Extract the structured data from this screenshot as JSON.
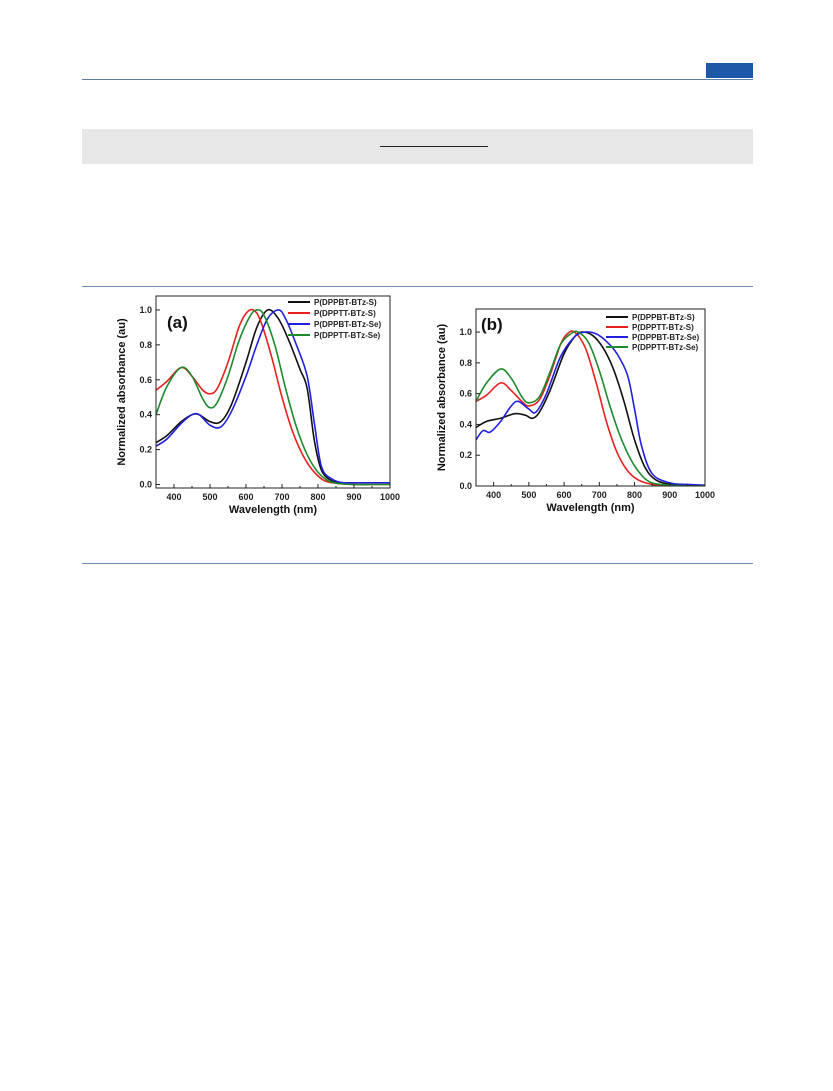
{
  "chart_data": [
    {
      "type": "line",
      "panel_label": "(a)",
      "xlabel": "Wavelength (nm)",
      "ylabel": "Normalized absorbance (au)",
      "xlim": [
        350,
        1000
      ],
      "ylim": [
        -0.02,
        1.08
      ],
      "xticks": [
        400,
        500,
        600,
        700,
        800,
        900,
        1000
      ],
      "yticks": [
        0.0,
        0.2,
        0.4,
        0.6,
        0.8,
        1.0
      ],
      "legend_position": "top-right",
      "series": [
        {
          "name": "P(DPPBT-BTz-S)",
          "color": "#111111",
          "x": [
            350,
            380,
            420,
            450,
            470,
            500,
            530,
            560,
            600,
            630,
            660,
            690,
            720,
            750,
            770,
            790,
            810,
            840,
            870,
            900,
            950,
            1000
          ],
          "y": [
            0.24,
            0.28,
            0.36,
            0.4,
            0.4,
            0.36,
            0.36,
            0.46,
            0.7,
            0.9,
            1.0,
            0.95,
            0.82,
            0.66,
            0.55,
            0.25,
            0.08,
            0.02,
            0.01,
            0.01,
            0.01,
            0.01
          ]
        },
        {
          "name": "P(DPPTT-BTz-S)",
          "color": "#e8201f",
          "x": [
            350,
            380,
            420,
            450,
            480,
            500,
            520,
            550,
            580,
            600,
            620,
            640,
            670,
            700,
            730,
            760,
            790,
            820,
            860,
            900,
            950,
            1000
          ],
          "y": [
            0.54,
            0.59,
            0.67,
            0.62,
            0.54,
            0.52,
            0.55,
            0.7,
            0.9,
            0.98,
            1.0,
            0.94,
            0.74,
            0.5,
            0.3,
            0.16,
            0.07,
            0.02,
            0.005,
            0.0,
            0.0,
            0.0
          ]
        },
        {
          "name": "P(DPPBT-BTz-Se)",
          "color": "#2020e0",
          "x": [
            350,
            380,
            420,
            450,
            470,
            500,
            530,
            560,
            600,
            630,
            660,
            690,
            710,
            740,
            770,
            790,
            810,
            840,
            870,
            900,
            950,
            1000
          ],
          "y": [
            0.22,
            0.26,
            0.35,
            0.4,
            0.4,
            0.34,
            0.33,
            0.42,
            0.62,
            0.8,
            0.95,
            1.0,
            0.95,
            0.8,
            0.62,
            0.35,
            0.1,
            0.03,
            0.01,
            0.01,
            0.01,
            0.01
          ]
        },
        {
          "name": "P(DPPTT-BTz-Se)",
          "color": "#1e8a2e",
          "x": [
            350,
            380,
            420,
            450,
            480,
            500,
            520,
            550,
            580,
            610,
            630,
            650,
            680,
            710,
            740,
            770,
            800,
            830,
            860,
            900,
            950,
            1000
          ],
          "y": [
            0.4,
            0.56,
            0.67,
            0.62,
            0.49,
            0.44,
            0.47,
            0.62,
            0.82,
            0.96,
            1.0,
            0.97,
            0.8,
            0.55,
            0.33,
            0.17,
            0.07,
            0.02,
            0.005,
            0.0,
            0.0,
            0.0
          ]
        }
      ]
    },
    {
      "type": "line",
      "panel_label": "(b)",
      "xlabel": "Wavelength (nm)",
      "ylabel": "Normalized absorbance (au)",
      "xlim": [
        350,
        1000
      ],
      "ylim": [
        0.0,
        1.15
      ],
      "xticks": [
        400,
        500,
        600,
        700,
        800,
        900,
        1000
      ],
      "yticks": [
        0.0,
        0.2,
        0.4,
        0.6,
        0.8,
        1.0
      ],
      "legend_position": "top-right",
      "series": [
        {
          "name": "P(DPPBT-BTz-S)",
          "color": "#111111",
          "x": [
            350,
            380,
            420,
            460,
            490,
            510,
            530,
            560,
            600,
            630,
            650,
            680,
            710,
            740,
            770,
            800,
            830,
            860,
            900,
            950,
            1000
          ],
          "y": [
            0.38,
            0.42,
            0.44,
            0.47,
            0.46,
            0.44,
            0.48,
            0.62,
            0.86,
            0.97,
            1.0,
            0.98,
            0.9,
            0.76,
            0.55,
            0.3,
            0.12,
            0.04,
            0.01,
            0.005,
            0.0
          ]
        },
        {
          "name": "P(DPPTT-BTz-S)",
          "color": "#e8201f",
          "x": [
            350,
            380,
            420,
            450,
            480,
            500,
            530,
            560,
            590,
            610,
            630,
            660,
            690,
            720,
            750,
            780,
            810,
            850,
            900,
            950,
            1000
          ],
          "y": [
            0.55,
            0.59,
            0.67,
            0.62,
            0.55,
            0.52,
            0.56,
            0.72,
            0.92,
            0.99,
            1.0,
            0.9,
            0.68,
            0.42,
            0.22,
            0.1,
            0.04,
            0.01,
            0.0,
            0.0,
            0.0
          ]
        },
        {
          "name": "P(DPPBT-BTz-Se)",
          "color": "#2020e0",
          "x": [
            350,
            370,
            390,
            420,
            450,
            470,
            500,
            520,
            550,
            590,
            630,
            660,
            690,
            720,
            750,
            780,
            800,
            820,
            850,
            900,
            950,
            1000
          ],
          "y": [
            0.3,
            0.36,
            0.35,
            0.42,
            0.52,
            0.55,
            0.5,
            0.48,
            0.6,
            0.84,
            0.97,
            1.0,
            0.99,
            0.94,
            0.86,
            0.72,
            0.5,
            0.26,
            0.08,
            0.02,
            0.01,
            0.005
          ]
        },
        {
          "name": "P(DPPTT-BTz-Se)",
          "color": "#1e8a2e",
          "x": [
            350,
            380,
            420,
            450,
            480,
            500,
            530,
            560,
            590,
            620,
            640,
            670,
            700,
            730,
            760,
            790,
            820,
            850,
            900,
            950,
            1000
          ],
          "y": [
            0.55,
            0.67,
            0.76,
            0.7,
            0.58,
            0.54,
            0.58,
            0.74,
            0.92,
            0.99,
            1.0,
            0.93,
            0.75,
            0.52,
            0.32,
            0.17,
            0.07,
            0.02,
            0.005,
            0.0,
            0.0
          ]
        }
      ]
    }
  ]
}
